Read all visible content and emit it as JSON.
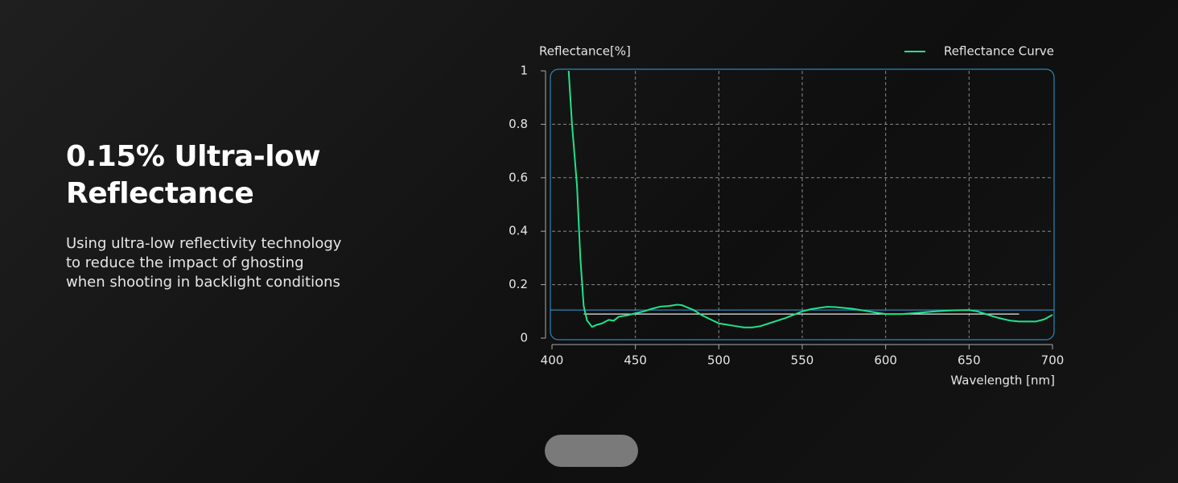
{
  "heading": [
    "0.15% Ultra-low",
    "Reflectance"
  ],
  "description": [
    "Using ultra-low reflectivity technology",
    "to reduce the impact of ghosting",
    "when shooting in backlight conditions"
  ],
  "chart_data": {
    "type": "line",
    "ylabel": "Reflectance[%]",
    "xlabel": "Wavelength [nm]",
    "x": [
      410,
      412,
      415,
      417,
      419,
      421,
      424,
      427,
      430,
      434,
      437,
      440,
      445,
      450,
      455,
      460,
      465,
      470,
      475,
      478,
      485,
      490,
      495,
      500,
      505,
      510,
      515,
      520,
      525,
      530,
      540,
      550,
      555,
      560,
      565,
      570,
      580,
      590,
      600,
      610,
      620,
      630,
      640,
      650,
      655,
      660,
      665,
      670,
      675,
      680,
      690,
      695,
      700
    ],
    "series": [
      {
        "name": "Reflectance Curve",
        "color": "#1ee38a",
        "values": [
          1.0,
          0.8,
          0.57,
          0.3,
          0.12,
          0.066,
          0.042,
          0.05,
          0.055,
          0.068,
          0.065,
          0.08,
          0.085,
          0.093,
          0.1,
          0.11,
          0.118,
          0.12,
          0.125,
          0.123,
          0.105,
          0.085,
          0.07,
          0.055,
          0.05,
          0.045,
          0.04,
          0.04,
          0.045,
          0.055,
          0.075,
          0.1,
          0.108,
          0.113,
          0.117,
          0.116,
          0.11,
          0.1,
          0.09,
          0.09,
          0.095,
          0.1,
          0.104,
          0.105,
          0.1,
          0.09,
          0.08,
          0.072,
          0.065,
          0.062,
          0.062,
          0.07,
          0.087
        ]
      }
    ],
    "hlines": [
      {
        "value": 0.105,
        "color": "#2b86b8"
      },
      {
        "value": 0.09,
        "x": [
          419,
          680
        ],
        "color": "#e8e8e8"
      }
    ],
    "xlim": [
      400,
      700
    ],
    "xticks": [
      400,
      450,
      500,
      550,
      600,
      650,
      700
    ],
    "ylim": [
      0,
      1
    ],
    "yticks": [
      0,
      0.2,
      0.4,
      0.6,
      0.8,
      1
    ],
    "grid": true,
    "legend": "top-right"
  }
}
